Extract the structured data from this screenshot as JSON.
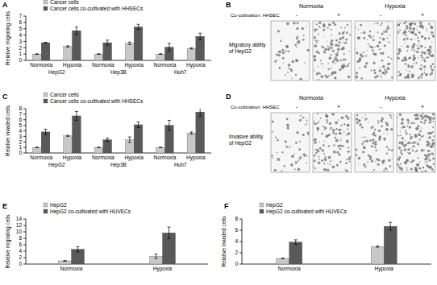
{
  "chart_data": [
    {
      "panel": "A",
      "type": "bar",
      "y_label": "Relative migrating cells",
      "categories": [
        "Normoxia",
        "Hypoxia",
        "Normoxia",
        "Hypoxia",
        "Normoxia",
        "Hypoxia"
      ],
      "groups": [
        "HepG2",
        "Hep3B",
        "Huh7"
      ],
      "series": [
        {
          "name": "Cancer cells",
          "color": "#c8c8c8",
          "values": [
            1.0,
            2.2,
            1.0,
            2.7,
            1.0,
            1.9
          ],
          "errors": [
            0.05,
            0.1,
            0.05,
            0.2,
            0.05,
            0.1
          ]
        },
        {
          "name": "Cancer cells co-cultivated with HHSECs",
          "color": "#595959",
          "values": [
            2.8,
            4.7,
            2.8,
            5.3,
            2.1,
            3.8
          ],
          "errors": [
            0.05,
            0.6,
            0.4,
            0.4,
            0.6,
            0.5
          ]
        }
      ],
      "ylim": [
        0,
        7
      ],
      "yticks": [
        0,
        1,
        2,
        3,
        4,
        5,
        6,
        7
      ],
      "legend": "top-left"
    },
    {
      "panel": "C",
      "type": "bar",
      "y_label": "Relative invaded cells",
      "categories": [
        "Normoxia",
        "Hypoxia",
        "Normoxia",
        "Hypoxia",
        "Normoxia",
        "Hypoxia"
      ],
      "groups": [
        "HepG2",
        "Hep3B",
        "Huh7"
      ],
      "series": [
        {
          "name": "Cancer cells",
          "color": "#c8c8c8",
          "values": [
            1.0,
            3.1,
            1.0,
            2.4,
            1.0,
            3.6
          ],
          "errors": [
            0.05,
            0.1,
            0.05,
            0.5,
            0.05,
            0.2
          ]
        },
        {
          "name": "Cancer cells co-cultivated with HHSECs",
          "color": "#595959",
          "values": [
            3.8,
            6.7,
            2.4,
            5.1,
            5.0,
            7.4
          ],
          "errors": [
            0.5,
            0.8,
            0.3,
            0.5,
            0.9,
            0.8
          ]
        }
      ],
      "ylim": [
        0,
        8
      ],
      "yticks": [
        0,
        1,
        2,
        3,
        4,
        5,
        6,
        7,
        8
      ],
      "legend": "top-left"
    },
    {
      "panel": "E",
      "type": "bar",
      "y_label": "Relative migrating cells",
      "categories": [
        "Normoxia",
        "Hypoxia"
      ],
      "series": [
        {
          "name": "HepG2",
          "color": "#c8c8c8",
          "values": [
            1.0,
            2.4
          ],
          "errors": [
            0.1,
            0.7
          ]
        },
        {
          "name": "HepG2 co-cultivated with HUVECs",
          "color": "#595959",
          "values": [
            4.6,
            9.7
          ],
          "errors": [
            0.8,
            1.8
          ]
        }
      ],
      "ylim": [
        0,
        14
      ],
      "yticks": [
        0,
        2,
        4,
        6,
        8,
        10,
        12,
        14
      ],
      "legend": "top-left"
    },
    {
      "panel": "F",
      "type": "bar",
      "y_label": "Relative invaded cells",
      "categories": [
        "Normoxia",
        "Hypoxia"
      ],
      "series": [
        {
          "name": "HepG2",
          "color": "#c8c8c8",
          "values": [
            1.0,
            3.1
          ],
          "errors": [
            0.05,
            0.1
          ]
        },
        {
          "name": "HepG2 co-cultivated with HUVECs",
          "color": "#595959",
          "values": [
            3.9,
            6.7
          ],
          "errors": [
            0.4,
            0.7
          ]
        }
      ],
      "ylim": [
        0,
        8
      ],
      "yticks": [
        0,
        2,
        4,
        6,
        8
      ],
      "legend": "top-left"
    }
  ],
  "image_panels": [
    {
      "panel": "B",
      "conditions": [
        "Normoxia",
        "Hypoxia"
      ],
      "row_label": "Co-cultivation: HHSEC",
      "signs": [
        "-",
        "+",
        "-",
        "+"
      ],
      "caption": "Migratory ability of HepG2"
    },
    {
      "panel": "D",
      "conditions": [
        "Normoxia",
        "Hypoxia"
      ],
      "row_label": "Co-cultivation: HHSEC",
      "signs": [
        "-",
        "+",
        "-",
        "+"
      ],
      "caption": "Invasive ability of HepG2"
    }
  ]
}
